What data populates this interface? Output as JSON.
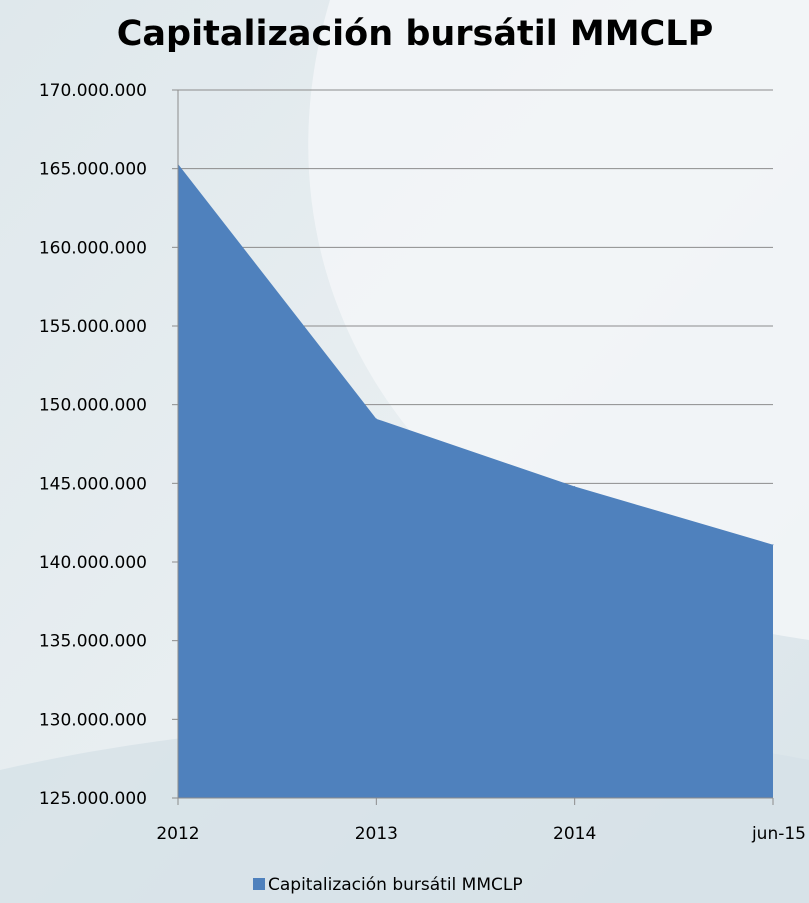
{
  "chart_data": {
    "type": "area",
    "title": "Capitalización bursátil MMCLP",
    "categories": [
      "2012",
      "2013",
      "2014",
      "jun-15"
    ],
    "series": [
      {
        "name": "Capitalización bursátil MMCLP",
        "values": [
          165300000,
          149100000,
          144800000,
          141100000
        ],
        "color": "#4f81bd"
      }
    ],
    "ylim": [
      125000000,
      170000000
    ],
    "ytick_step": 5000000,
    "ytick_labels": [
      "125.000.000",
      "130.000.000",
      "135.000.000",
      "140.000.000",
      "145.000.000",
      "150.000.000",
      "155.000.000",
      "160.000.000",
      "165.000.000",
      "170.000.000"
    ],
    "grid": true,
    "legend_position": "bottom"
  }
}
